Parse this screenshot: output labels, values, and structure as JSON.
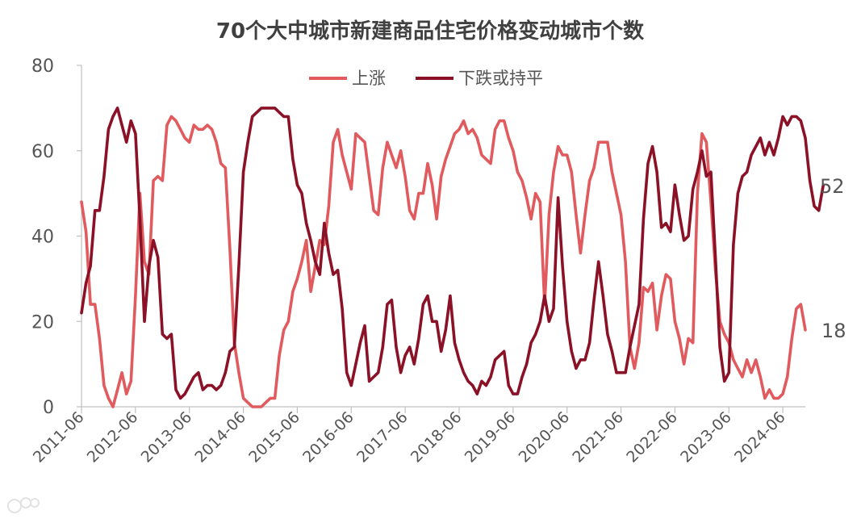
{
  "chart_data": {
    "type": "line",
    "title": "70个大中城市新建商品住宅价格变动城市个数",
    "ylim": [
      0,
      80
    ],
    "yticks": [
      "0",
      "20",
      "40",
      "60",
      "80"
    ],
    "xlabels": [
      "2011-06",
      "2012-06",
      "2013-06",
      "2014-06",
      "2015-06",
      "2016-06",
      "2017-06",
      "2018-06",
      "2019-06",
      "2020-06",
      "2021-06",
      "2022-06",
      "2023-06",
      "2024-06"
    ],
    "legend_position": "top-center",
    "end_labels": [
      "52",
      "18"
    ],
    "series": [
      {
        "name": "上涨",
        "color": "#e05a5e",
        "values": [
          48,
          41,
          24,
          24,
          16,
          5,
          2,
          0,
          4,
          8,
          3,
          6,
          26,
          50,
          34,
          31,
          53,
          54,
          53,
          66,
          68,
          67,
          65,
          63,
          62,
          66,
          65,
          65,
          66,
          65,
          62,
          57,
          56,
          37,
          15,
          8,
          2,
          1,
          0,
          0,
          0,
          1,
          2,
          2,
          12,
          18,
          20,
          27,
          30,
          34,
          39,
          27,
          33,
          39,
          38,
          47,
          62,
          65,
          59,
          55,
          51,
          64,
          63,
          62,
          54,
          46,
          45,
          56,
          62,
          59,
          56,
          60,
          54,
          46,
          44,
          50,
          50,
          57,
          52,
          44,
          54,
          58,
          61,
          64,
          65,
          67,
          64,
          65,
          63,
          59,
          58,
          57,
          65,
          67,
          67,
          63,
          60,
          55,
          53,
          49,
          44,
          50,
          48,
          24,
          45,
          55,
          61,
          59,
          59,
          55,
          45,
          36,
          45,
          53,
          56,
          62,
          62,
          62,
          55,
          50,
          45,
          34,
          14,
          9,
          15,
          28,
          27,
          29,
          18,
          26,
          31,
          30,
          20,
          16,
          10,
          16,
          15,
          50,
          64,
          62,
          48,
          32,
          20,
          17,
          15,
          11,
          9,
          7,
          11,
          8,
          11,
          7,
          2,
          4,
          2,
          2,
          3,
          7,
          16,
          23,
          24,
          18
        ]
      },
      {
        "name": "下跌或持平",
        "color": "#8b1226",
        "values": [
          22,
          29,
          33,
          46,
          46,
          54,
          65,
          68,
          70,
          66,
          62,
          67,
          64,
          44,
          20,
          33,
          39,
          35,
          17,
          16,
          17,
          4,
          2,
          3,
          5,
          7,
          8,
          4,
          5,
          5,
          4,
          5,
          8,
          13,
          14,
          33,
          55,
          62,
          68,
          69,
          70,
          70,
          70,
          70,
          69,
          68,
          68,
          58,
          52,
          50,
          43,
          39,
          34,
          31,
          43,
          36,
          31,
          32,
          23,
          8,
          5,
          10,
          15,
          19,
          6,
          7,
          8,
          14,
          24,
          25,
          14,
          8,
          12,
          14,
          10,
          16,
          24,
          26,
          20,
          20,
          13,
          18,
          26,
          15,
          11,
          8,
          6,
          5,
          3,
          6,
          5,
          7,
          11,
          12,
          13,
          5,
          3,
          3,
          7,
          10,
          15,
          17,
          20,
          26,
          20,
          23,
          49,
          33,
          20,
          13,
          9,
          11,
          11,
          15,
          25,
          34,
          26,
          17,
          13,
          8,
          8,
          8,
          14,
          19,
          24,
          44,
          57,
          61,
          55,
          42,
          43,
          41,
          52,
          45,
          39,
          40,
          51,
          55,
          60,
          54,
          55,
          35,
          14,
          6,
          8,
          38,
          50,
          54,
          55,
          59,
          61,
          63,
          59,
          62,
          59,
          63,
          68,
          66,
          68,
          68,
          67,
          63,
          53,
          47,
          46,
          52
        ]
      }
    ]
  }
}
